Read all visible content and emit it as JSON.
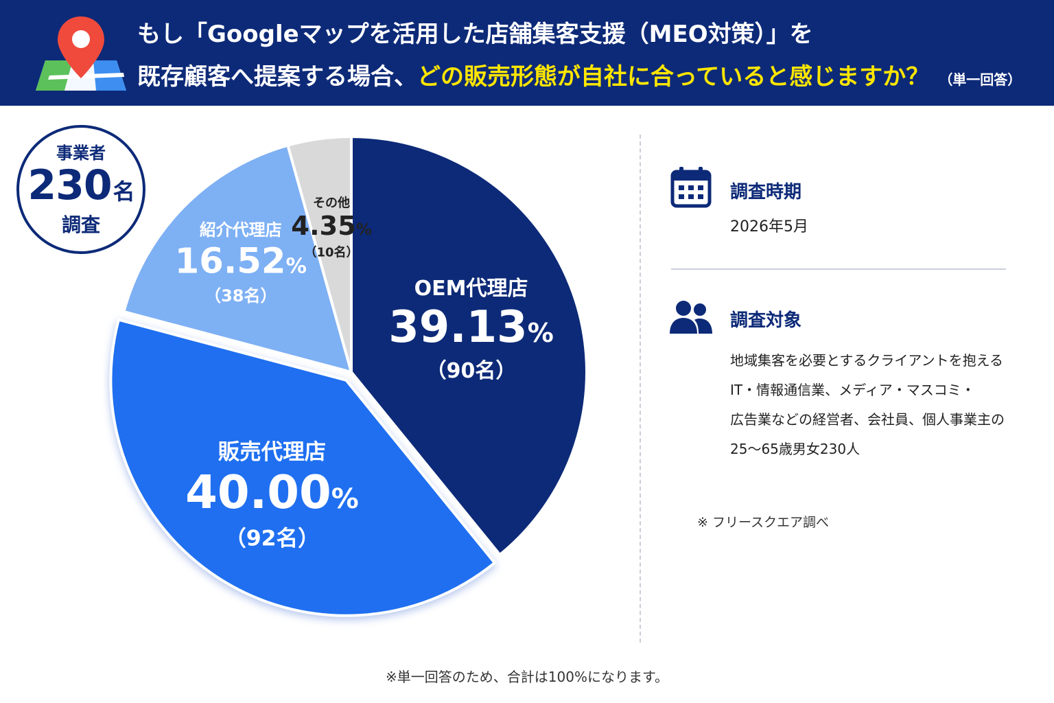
{
  "header": {
    "line1": "もし「Googleマップを活用した店舗集客支援（MEO対策）」を",
    "line2_plain": "既存顧客へ提案する場合、",
    "line2_highlight": "どの販売形態が自社に合っていると感じますか？",
    "answer_type": "（単一回答）"
  },
  "badge": {
    "top": "事業者",
    "number": "230",
    "unit": "名",
    "bottom": "調査"
  },
  "chart_data": {
    "type": "pie",
    "slices": [
      {
        "label": "OEM代理店",
        "value": 39.13,
        "display": "39.13",
        "count": "（90名）",
        "color": "#0d2a78"
      },
      {
        "label": "販売代理店",
        "value": 40.0,
        "display": "40.00",
        "count": "（92名）",
        "color": "#1f6ff0"
      },
      {
        "label": "紹介代理店",
        "value": 16.52,
        "display": "16.52",
        "count": "（38名）",
        "color": "#7eb0f4"
      },
      {
        "label": "その他",
        "value": 4.35,
        "display": "4.35",
        "count": "（10名）",
        "color": "#d9d9d9"
      }
    ],
    "percent_symbol": "%"
  },
  "info": {
    "period_title": "調査時期",
    "period_value": "2026年5月",
    "target_title": "調査対象",
    "target_lines": [
      "地域集客を必要とするクライアントを抱える",
      "IT・情報通信業、メディア・マスコミ・",
      "広告業などの経営者、会社員、個人事業主の",
      "25〜65歳男女230人"
    ],
    "survey_note": "※ フリースクエア調べ"
  },
  "footnote": "※単一回答のため、合計は100%になります。",
  "icons": {
    "map": "map-pin-icon",
    "calendar": "calendar-icon",
    "people": "people-icon"
  }
}
